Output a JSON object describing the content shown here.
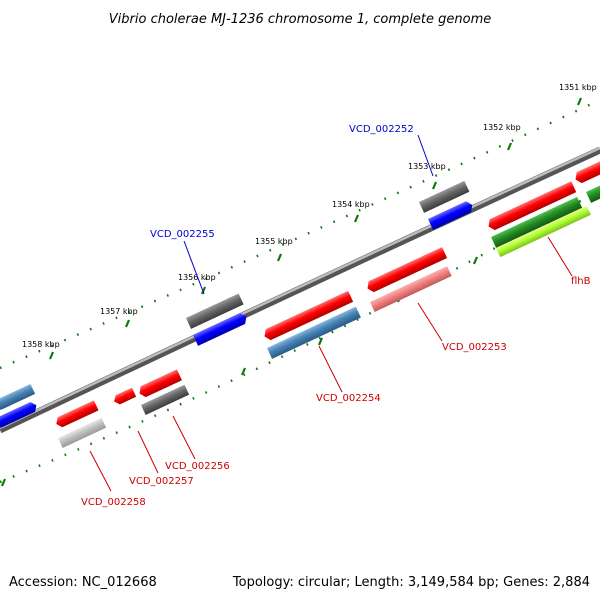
{
  "title": "Vibrio cholerae MJ-1236 chromosome 1, complete genome",
  "footer": {
    "accession": "Accession: NC_012668",
    "summary": "Topology: circular; Length: 3,149,584 bp; Genes: 2,884"
  },
  "ticks": [
    "1351 kbp",
    "1352 kbp",
    "1353 kbp",
    "1354 kbp",
    "1355 kbp",
    "1356 kbp",
    "1357 kbp",
    "1358 kbp"
  ],
  "gene_labels": [
    "VCD_002252",
    "VCD_002255",
    "VCD_002253",
    "VCD_002254",
    "flhB",
    "VCD_002256",
    "VCD_002257",
    "VCD_002258"
  ],
  "colors": {
    "forward_cds": "#ff0000",
    "reverse_cds": "#0000ff",
    "gray_track": "#666666",
    "steelblue_track": "#4682b4",
    "green_track": "#2e8b2e",
    "tick_color": "#0a7a0a",
    "blue_label": "#0000cc",
    "red_label": "#cc0000"
  }
}
